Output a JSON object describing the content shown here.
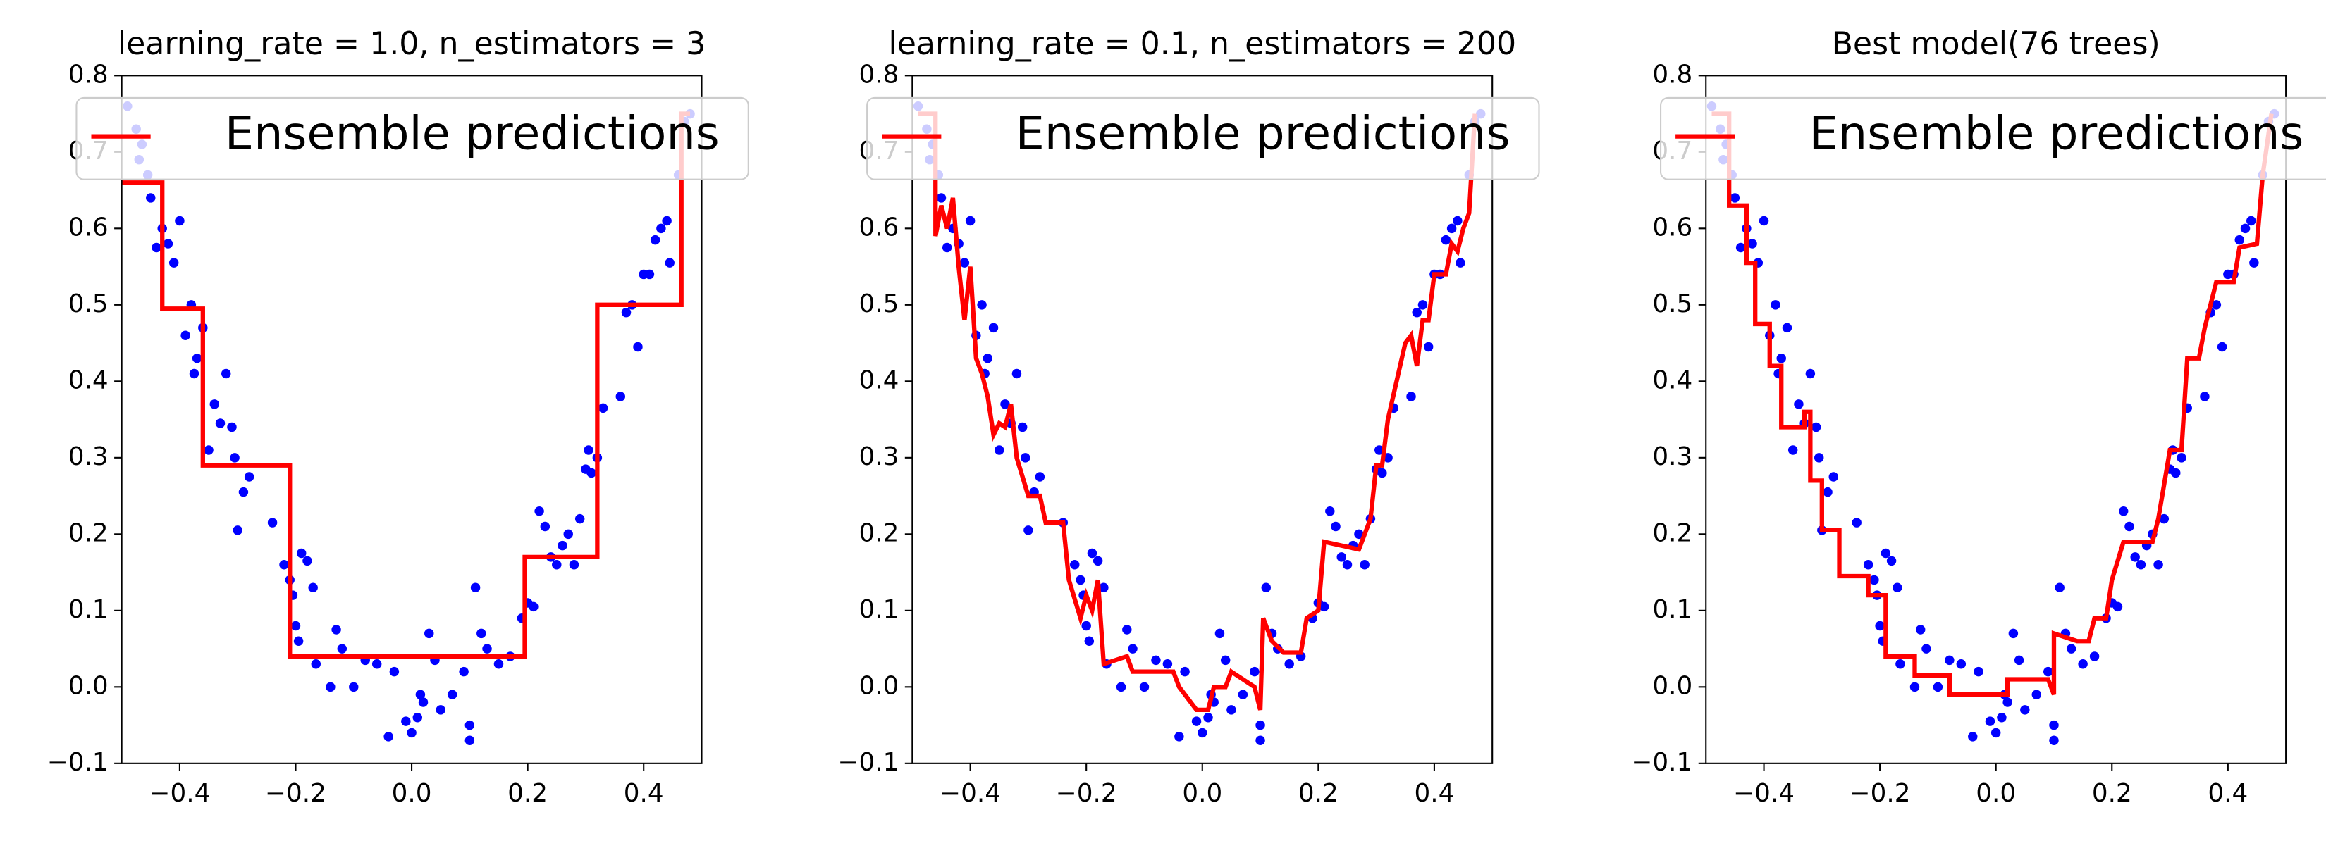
{
  "chart_data": [
    {
      "type": "line",
      "title": "learning_rate = 1.0, n_estimators = 3",
      "xlim": [
        -0.5,
        0.5
      ],
      "ylim": [
        -0.1,
        0.8
      ],
      "xticks": [
        {
          "value": -0.4,
          "label": "−0.4"
        },
        {
          "value": -0.2,
          "label": "−0.2"
        },
        {
          "value": 0,
          "label": "0.0"
        },
        0.2,
        0.4
      ],
      "yticks": [
        {
          "value": -0.1,
          "label": "−0.1"
        },
        {
          "value": 0,
          "label": "0.0"
        },
        0.1,
        0.2,
        0.3,
        0.4,
        0.5,
        0.6,
        0.7,
        0.8
      ],
      "legend": "upper center",
      "scatter": {
        "color": "#0000ff",
        "x": [
          -0.49,
          -0.475,
          -0.465,
          -0.47,
          -0.455,
          -0.45,
          -0.44,
          -0.43,
          -0.42,
          -0.41,
          -0.4,
          -0.39,
          -0.38,
          -0.37,
          -0.375,
          -0.36,
          -0.35,
          -0.34,
          -0.33,
          -0.32,
          -0.31,
          -0.305,
          -0.3,
          -0.29,
          -0.28,
          -0.24,
          -0.22,
          -0.21,
          -0.205,
          -0.2,
          -0.195,
          -0.19,
          -0.18,
          -0.17,
          -0.165,
          -0.14,
          -0.13,
          -0.12,
          -0.1,
          -0.08,
          -0.06,
          -0.04,
          -0.03,
          -0.01,
          0.0,
          0.01,
          0.015,
          0.02,
          0.03,
          0.04,
          0.05,
          0.07,
          0.09,
          0.1,
          0.1,
          0.11,
          0.12,
          0.13,
          0.15,
          0.17,
          0.19,
          0.2,
          0.21,
          0.22,
          0.23,
          0.24,
          0.25,
          0.26,
          0.27,
          0.28,
          0.29,
          0.3,
          0.305,
          0.31,
          0.32,
          0.33,
          0.36,
          0.37,
          0.38,
          0.39,
          0.4,
          0.41,
          0.42,
          0.43,
          0.44,
          0.445,
          0.46,
          0.47,
          0.48
        ],
        "y": [
          0.76,
          0.73,
          0.71,
          0.69,
          0.67,
          0.64,
          0.575,
          0.6,
          0.58,
          0.555,
          0.61,
          0.46,
          0.5,
          0.43,
          0.41,
          0.47,
          0.31,
          0.37,
          0.345,
          0.41,
          0.34,
          0.3,
          0.205,
          0.255,
          0.275,
          0.215,
          0.16,
          0.14,
          0.12,
          0.08,
          0.06,
          0.175,
          0.165,
          0.13,
          0.03,
          0.0,
          0.075,
          0.05,
          0.0,
          0.035,
          0.03,
          -0.065,
          0.02,
          -0.045,
          -0.06,
          -0.04,
          -0.01,
          -0.02,
          0.07,
          0.035,
          -0.03,
          -0.01,
          0.02,
          -0.05,
          -0.07,
          0.13,
          0.07,
          0.05,
          0.03,
          0.04,
          0.09,
          0.11,
          0.105,
          0.23,
          0.21,
          0.17,
          0.16,
          0.185,
          0.2,
          0.16,
          0.22,
          0.285,
          0.31,
          0.28,
          0.3,
          0.365,
          0.38,
          0.49,
          0.5,
          0.445,
          0.54,
          0.54,
          0.585,
          0.6,
          0.61,
          0.555,
          0.67,
          0.74,
          0.75
        ]
      },
      "series": [
        {
          "name": "Ensemble predictions",
          "color": "#ff0000",
          "x": [
            -0.5,
            -0.43,
            -0.43,
            -0.36,
            -0.36,
            -0.21,
            -0.21,
            0.195,
            0.195,
            0.32,
            0.32,
            0.465,
            0.465,
            0.48
          ],
          "y": [
            0.66,
            0.66,
            0.495,
            0.495,
            0.29,
            0.29,
            0.04,
            0.04,
            0.17,
            0.17,
            0.5,
            0.5,
            0.75,
            0.75
          ]
        }
      ]
    },
    {
      "type": "line",
      "title": "learning_rate = 0.1, n_estimators = 200",
      "xlim": [
        -0.5,
        0.5
      ],
      "ylim": [
        -0.1,
        0.8
      ],
      "xticks": [
        {
          "value": -0.4,
          "label": "−0.4"
        },
        {
          "value": -0.2,
          "label": "−0.2"
        },
        {
          "value": 0,
          "label": "0.0"
        },
        0.2,
        0.4
      ],
      "yticks": [
        {
          "value": -0.1,
          "label": "−0.1"
        },
        {
          "value": 0,
          "label": "0.0"
        },
        0.1,
        0.2,
        0.3,
        0.4,
        0.5,
        0.6,
        0.7,
        0.8
      ],
      "legend": "upper center",
      "scatter": {
        "color": "#0000ff",
        "x": [
          -0.49,
          -0.475,
          -0.465,
          -0.47,
          -0.455,
          -0.45,
          -0.44,
          -0.43,
          -0.42,
          -0.41,
          -0.4,
          -0.39,
          -0.38,
          -0.37,
          -0.375,
          -0.36,
          -0.35,
          -0.34,
          -0.33,
          -0.32,
          -0.31,
          -0.305,
          -0.3,
          -0.29,
          -0.28,
          -0.24,
          -0.22,
          -0.21,
          -0.205,
          -0.2,
          -0.195,
          -0.19,
          -0.18,
          -0.17,
          -0.165,
          -0.14,
          -0.13,
          -0.12,
          -0.1,
          -0.08,
          -0.06,
          -0.04,
          -0.03,
          -0.01,
          0.0,
          0.01,
          0.015,
          0.02,
          0.03,
          0.04,
          0.05,
          0.07,
          0.09,
          0.1,
          0.1,
          0.11,
          0.12,
          0.13,
          0.15,
          0.17,
          0.19,
          0.2,
          0.21,
          0.22,
          0.23,
          0.24,
          0.25,
          0.26,
          0.27,
          0.28,
          0.29,
          0.3,
          0.305,
          0.31,
          0.32,
          0.33,
          0.36,
          0.37,
          0.38,
          0.39,
          0.4,
          0.41,
          0.42,
          0.43,
          0.44,
          0.445,
          0.46,
          0.47,
          0.48
        ],
        "y": [
          0.76,
          0.73,
          0.71,
          0.69,
          0.67,
          0.64,
          0.575,
          0.6,
          0.58,
          0.555,
          0.61,
          0.46,
          0.5,
          0.43,
          0.41,
          0.47,
          0.31,
          0.37,
          0.345,
          0.41,
          0.34,
          0.3,
          0.205,
          0.255,
          0.275,
          0.215,
          0.16,
          0.14,
          0.12,
          0.08,
          0.06,
          0.175,
          0.165,
          0.13,
          0.03,
          0.0,
          0.075,
          0.05,
          0.0,
          0.035,
          0.03,
          -0.065,
          0.02,
          -0.045,
          -0.06,
          -0.04,
          -0.01,
          -0.02,
          0.07,
          0.035,
          -0.03,
          -0.01,
          0.02,
          -0.05,
          -0.07,
          0.13,
          0.07,
          0.05,
          0.03,
          0.04,
          0.09,
          0.11,
          0.105,
          0.23,
          0.21,
          0.17,
          0.16,
          0.185,
          0.2,
          0.16,
          0.22,
          0.285,
          0.31,
          0.28,
          0.3,
          0.365,
          0.38,
          0.49,
          0.5,
          0.445,
          0.54,
          0.54,
          0.585,
          0.6,
          0.61,
          0.555,
          0.67,
          0.74,
          0.75
        ]
      },
      "series": [
        {
          "name": "Ensemble predictions",
          "color": "#ff0000",
          "x": [
            -0.49,
            -0.46,
            -0.46,
            -0.45,
            -0.44,
            -0.43,
            -0.42,
            -0.41,
            -0.4,
            -0.39,
            -0.38,
            -0.37,
            -0.36,
            -0.35,
            -0.34,
            -0.33,
            -0.32,
            -0.3,
            -0.28,
            -0.27,
            -0.24,
            -0.23,
            -0.21,
            -0.2,
            -0.19,
            -0.18,
            -0.17,
            -0.13,
            -0.12,
            -0.05,
            -0.04,
            -0.01,
            0.01,
            0.02,
            0.04,
            0.05,
            0.09,
            0.1,
            0.105,
            0.12,
            0.14,
            0.17,
            0.18,
            0.2,
            0.21,
            0.27,
            0.29,
            0.3,
            0.31,
            0.32,
            0.35,
            0.36,
            0.37,
            0.38,
            0.39,
            0.4,
            0.42,
            0.43,
            0.44,
            0.45,
            0.46,
            0.47
          ],
          "y": [
            0.75,
            0.75,
            0.59,
            0.63,
            0.6,
            0.64,
            0.55,
            0.48,
            0.55,
            0.43,
            0.41,
            0.38,
            0.33,
            0.345,
            0.34,
            0.37,
            0.3,
            0.25,
            0.25,
            0.215,
            0.215,
            0.14,
            0.09,
            0.12,
            0.1,
            0.14,
            0.03,
            0.04,
            0.02,
            0.02,
            0.0,
            -0.03,
            -0.03,
            0.0,
            0.0,
            0.02,
            0.0,
            -0.03,
            0.09,
            0.06,
            0.045,
            0.045,
            0.09,
            0.1,
            0.19,
            0.18,
            0.22,
            0.29,
            0.29,
            0.35,
            0.45,
            0.46,
            0.42,
            0.48,
            0.48,
            0.54,
            0.54,
            0.58,
            0.57,
            0.6,
            0.62,
            0.75
          ]
        }
      ]
    },
    {
      "type": "line",
      "title": "Best model(76 trees)",
      "xlim": [
        -0.5,
        0.5
      ],
      "ylim": [
        -0.1,
        0.8
      ],
      "xticks": [
        {
          "value": -0.4,
          "label": "−0.4"
        },
        {
          "value": -0.2,
          "label": "−0.2"
        },
        {
          "value": 0,
          "label": "0.0"
        },
        0.2,
        0.4
      ],
      "yticks": [
        {
          "value": -0.1,
          "label": "−0.1"
        },
        {
          "value": 0,
          "label": "0.0"
        },
        0.1,
        0.2,
        0.3,
        0.4,
        0.5,
        0.6,
        0.7,
        0.8
      ],
      "legend": "upper center",
      "scatter": {
        "color": "#0000ff",
        "x": [
          -0.49,
          -0.475,
          -0.465,
          -0.47,
          -0.455,
          -0.45,
          -0.44,
          -0.43,
          -0.42,
          -0.41,
          -0.4,
          -0.39,
          -0.38,
          -0.37,
          -0.375,
          -0.36,
          -0.35,
          -0.34,
          -0.33,
          -0.32,
          -0.31,
          -0.305,
          -0.3,
          -0.29,
          -0.28,
          -0.24,
          -0.22,
          -0.21,
          -0.205,
          -0.2,
          -0.195,
          -0.19,
          -0.18,
          -0.17,
          -0.165,
          -0.14,
          -0.13,
          -0.12,
          -0.1,
          -0.08,
          -0.06,
          -0.04,
          -0.03,
          -0.01,
          0.0,
          0.01,
          0.015,
          0.02,
          0.03,
          0.04,
          0.05,
          0.07,
          0.09,
          0.1,
          0.1,
          0.11,
          0.12,
          0.13,
          0.15,
          0.17,
          0.19,
          0.2,
          0.21,
          0.22,
          0.23,
          0.24,
          0.25,
          0.26,
          0.27,
          0.28,
          0.29,
          0.3,
          0.305,
          0.31,
          0.32,
          0.33,
          0.36,
          0.37,
          0.38,
          0.39,
          0.4,
          0.41,
          0.42,
          0.43,
          0.44,
          0.445,
          0.46,
          0.47,
          0.48
        ],
        "y": [
          0.76,
          0.73,
          0.71,
          0.69,
          0.67,
          0.64,
          0.575,
          0.6,
          0.58,
          0.555,
          0.61,
          0.46,
          0.5,
          0.43,
          0.41,
          0.47,
          0.31,
          0.37,
          0.345,
          0.41,
          0.34,
          0.3,
          0.205,
          0.255,
          0.275,
          0.215,
          0.16,
          0.14,
          0.12,
          0.08,
          0.06,
          0.175,
          0.165,
          0.13,
          0.03,
          0.0,
          0.075,
          0.05,
          0.0,
          0.035,
          0.03,
          -0.065,
          0.02,
          -0.045,
          -0.06,
          -0.04,
          -0.01,
          -0.02,
          0.07,
          0.035,
          -0.03,
          -0.01,
          0.02,
          -0.05,
          -0.07,
          0.13,
          0.07,
          0.05,
          0.03,
          0.04,
          0.09,
          0.11,
          0.105,
          0.23,
          0.21,
          0.17,
          0.16,
          0.185,
          0.2,
          0.16,
          0.22,
          0.285,
          0.31,
          0.28,
          0.3,
          0.365,
          0.38,
          0.49,
          0.5,
          0.445,
          0.54,
          0.54,
          0.585,
          0.6,
          0.61,
          0.555,
          0.67,
          0.74,
          0.75
        ]
      },
      "series": [
        {
          "name": "Ensemble predictions",
          "color": "#ff0000",
          "x": [
            -0.49,
            -0.46,
            -0.46,
            -0.43,
            -0.43,
            -0.415,
            -0.415,
            -0.39,
            -0.39,
            -0.37,
            -0.37,
            -0.33,
            -0.33,
            -0.32,
            -0.32,
            -0.3,
            -0.3,
            -0.27,
            -0.27,
            -0.22,
            -0.22,
            -0.19,
            -0.19,
            -0.14,
            -0.14,
            -0.08,
            -0.08,
            0.02,
            0.02,
            0.09,
            0.1,
            0.1,
            0.14,
            0.16,
            0.17,
            0.19,
            0.2,
            0.22,
            0.27,
            0.28,
            0.3,
            0.32,
            0.33,
            0.35,
            0.36,
            0.38,
            0.41,
            0.42,
            0.45,
            0.46,
            0.475
          ],
          "y": [
            0.75,
            0.75,
            0.63,
            0.63,
            0.555,
            0.555,
            0.475,
            0.475,
            0.42,
            0.42,
            0.34,
            0.34,
            0.36,
            0.36,
            0.27,
            0.27,
            0.205,
            0.205,
            0.145,
            0.145,
            0.12,
            0.12,
            0.04,
            0.04,
            0.015,
            0.015,
            -0.01,
            -0.01,
            0.01,
            0.01,
            -0.01,
            0.07,
            0.06,
            0.06,
            0.09,
            0.09,
            0.14,
            0.19,
            0.19,
            0.22,
            0.31,
            0.31,
            0.43,
            0.43,
            0.47,
            0.53,
            0.53,
            0.575,
            0.58,
            0.67,
            0.75
          ]
        }
      ]
    }
  ]
}
